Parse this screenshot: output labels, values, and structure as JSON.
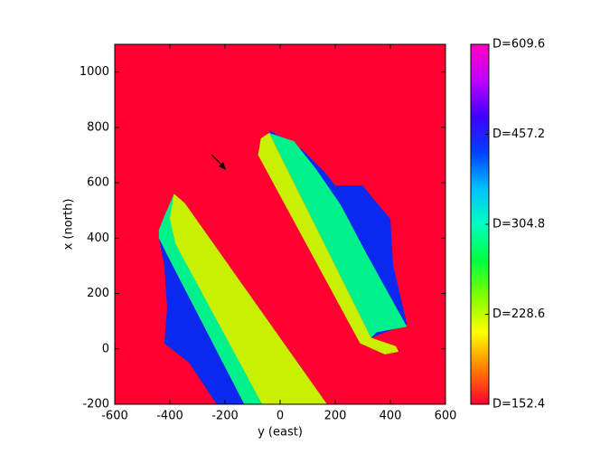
{
  "chart_data": {
    "type": "region-map",
    "xlabel": "y (east)",
    "ylabel": "x (north)",
    "xlim": [
      -600,
      600
    ],
    "xticks": [
      -600,
      -400,
      -200,
      0,
      200,
      400,
      600
    ],
    "ylim": [
      -200,
      1100
    ],
    "yticks": [
      -200,
      0,
      200,
      400,
      600,
      800,
      1000
    ],
    "background": {
      "value": 152.4,
      "color": "#ff0030"
    },
    "regions": [
      {
        "value": 457.2,
        "color": "#0a28f0",
        "points": [
          [
            -440,
            400
          ],
          [
            -400,
            320
          ],
          [
            -130,
            -200
          ],
          [
            -230,
            -200
          ],
          [
            -330,
            -50
          ],
          [
            -420,
            20
          ],
          [
            -410,
            150
          ],
          [
            -420,
            300
          ]
        ]
      },
      {
        "value": 304.8,
        "color": "#00f08c",
        "points": [
          [
            -440,
            430
          ],
          [
            -420,
            480
          ],
          [
            -385,
            560
          ],
          [
            -345,
            525
          ],
          [
            170,
            -200
          ],
          [
            -130,
            -200
          ],
          [
            -400,
            320
          ],
          [
            -440,
            400
          ]
        ]
      },
      {
        "value": 228.6,
        "color": "#c8f000",
        "points": [
          [
            -385,
            560
          ],
          [
            -345,
            525
          ],
          [
            170,
            -200
          ],
          [
            -65,
            -200
          ],
          [
            -380,
            380
          ],
          [
            -400,
            470
          ]
        ]
      },
      {
        "value": 457.2,
        "color": "#0a28f0",
        "points": [
          [
            -40,
            790
          ],
          [
            80,
            720
          ],
          [
            160,
            640
          ],
          [
            200,
            590
          ],
          [
            300,
            590
          ],
          [
            340,
            540
          ],
          [
            400,
            470
          ],
          [
            410,
            300
          ],
          [
            460,
            90
          ],
          [
            330,
            40
          ]
        ]
      },
      {
        "value": 304.8,
        "color": "#00f08c",
        "points": [
          [
            -40,
            780
          ],
          [
            50,
            750
          ],
          [
            130,
            650
          ],
          [
            220,
            520
          ],
          [
            310,
            350
          ],
          [
            460,
            80
          ],
          [
            350,
            60
          ],
          [
            330,
            40
          ]
        ]
      },
      {
        "value": 228.6,
        "color": "#c8f000",
        "points": [
          [
            -70,
            760
          ],
          [
            -40,
            780
          ],
          [
            330,
            40
          ],
          [
            420,
            10
          ],
          [
            430,
            -10
          ],
          [
            380,
            -20
          ],
          [
            290,
            20
          ],
          [
            -80,
            700
          ]
        ]
      }
    ],
    "colorbar": {
      "ticks": [
        {
          "value": 152.4,
          "label": "D=152.4"
        },
        {
          "value": 228.6,
          "label": "D=228.6"
        },
        {
          "value": 304.8,
          "label": "D=304.8"
        },
        {
          "value": 457.2,
          "label": "D=457.2"
        },
        {
          "value": 609.6,
          "label": "D=609.6"
        }
      ],
      "colors": [
        "#ff0030",
        "#ff8000",
        "#ffff00",
        "#80ff00",
        "#00ff40",
        "#00ffc0",
        "#00c0ff",
        "#0040ff",
        "#4000ff",
        "#c000ff",
        "#ff00c0"
      ]
    }
  }
}
